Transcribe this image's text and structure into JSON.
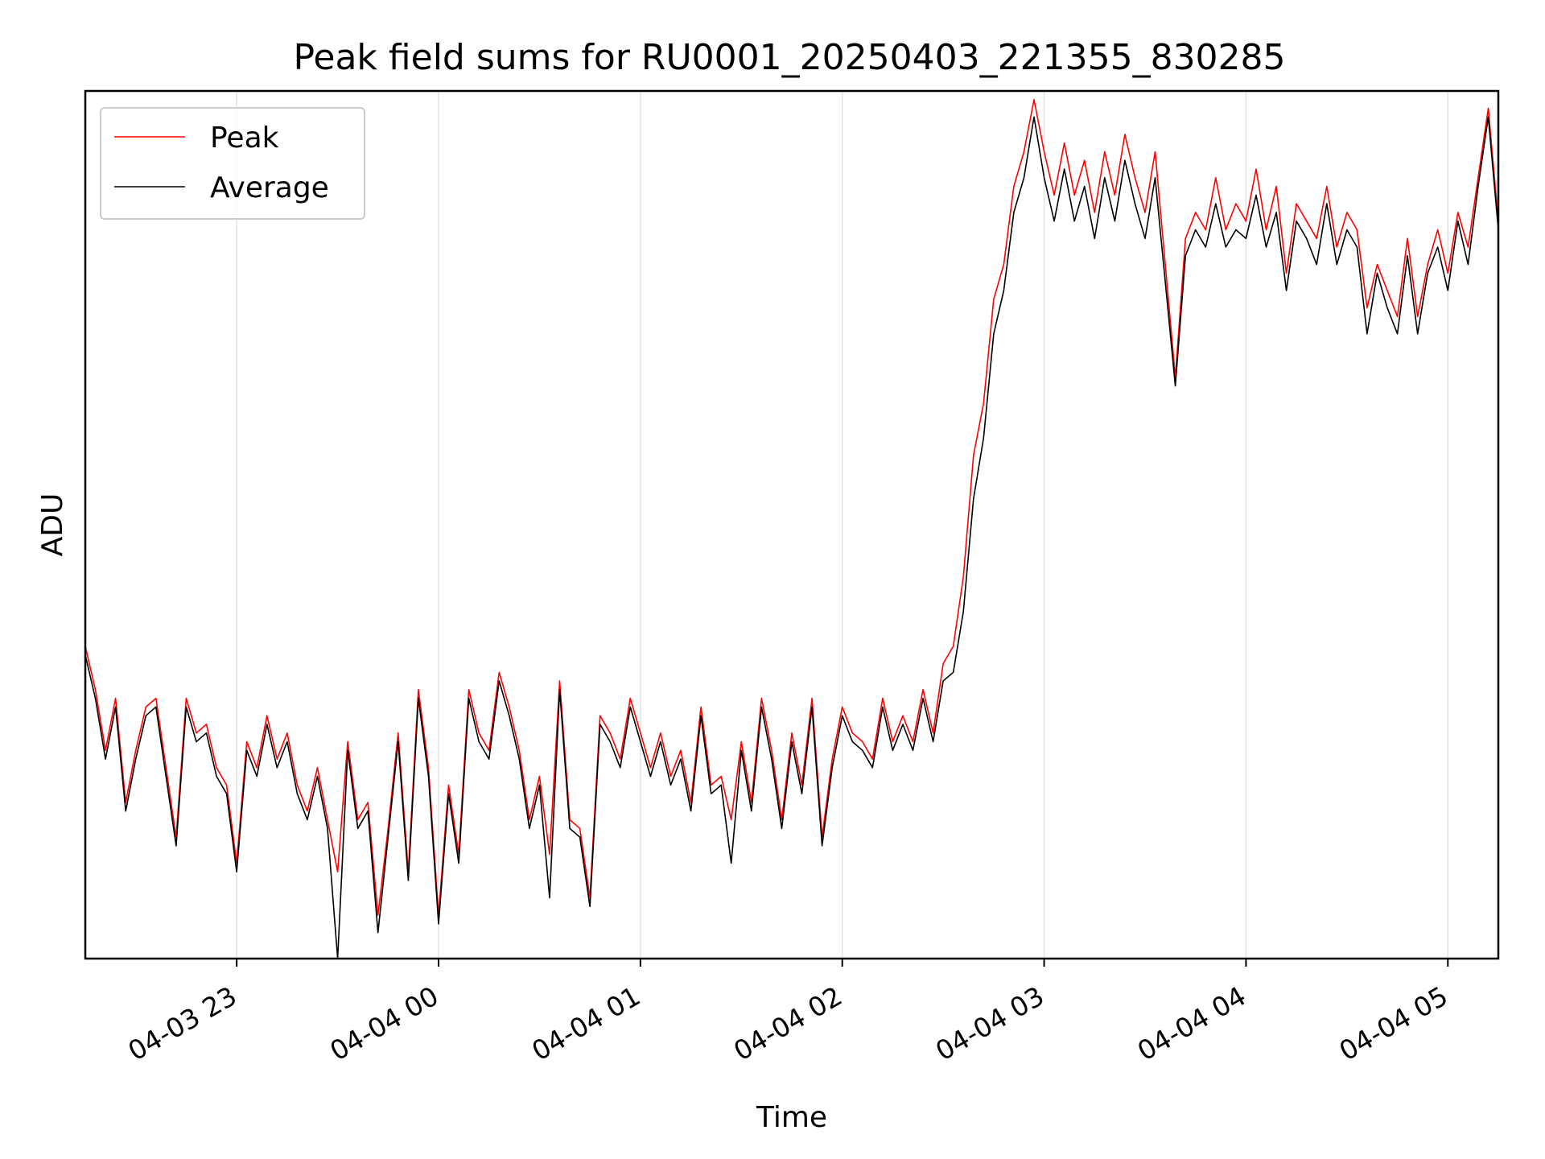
{
  "chart_data": {
    "type": "line",
    "title": "Peak field sums for RU0001_20250403_221355_830285",
    "xlabel": "Time",
    "ylabel": "ADU",
    "x_tick_labels": [
      "04-03 23",
      "04-04 00",
      "04-04 01",
      "04-04 02",
      "04-04 03",
      "04-04 04",
      "04-04 05"
    ],
    "x_tick_hours": [
      23,
      24,
      25,
      26,
      27,
      28,
      29
    ],
    "xlim_hours": [
      22.25,
      29.25
    ],
    "ylim": [
      0,
      1
    ],
    "y_tick_labels": [],
    "grid": "x-only",
    "legend_position": "top-left",
    "series": [
      {
        "name": "Peak",
        "color": "#ff0000",
        "hours": [
          22.25,
          22.3,
          22.35,
          22.4,
          22.45,
          22.5,
          22.55,
          22.6,
          22.65,
          22.7,
          22.75,
          22.8,
          22.85,
          22.9,
          22.95,
          23.0,
          23.05,
          23.1,
          23.15,
          23.2,
          23.25,
          23.3,
          23.35,
          23.4,
          23.45,
          23.5,
          23.55,
          23.6,
          23.65,
          23.7,
          23.75,
          23.8,
          23.85,
          23.9,
          23.95,
          24.0,
          24.05,
          24.1,
          24.15,
          24.2,
          24.25,
          24.3,
          24.35,
          24.4,
          24.45,
          24.5,
          24.55,
          24.6,
          24.65,
          24.7,
          24.75,
          24.8,
          24.85,
          24.9,
          24.95,
          25.0,
          25.05,
          25.1,
          25.15,
          25.2,
          25.25,
          25.3,
          25.35,
          25.4,
          25.45,
          25.5,
          25.55,
          25.6,
          25.65,
          25.7,
          25.75,
          25.8,
          25.85,
          25.9,
          25.95,
          26.0,
          26.05,
          26.1,
          26.15,
          26.2,
          26.25,
          26.3,
          26.35,
          26.4,
          26.45,
          26.5,
          26.55,
          26.6,
          26.65,
          26.7,
          26.75,
          26.8,
          26.85,
          26.9,
          26.95,
          27.0,
          27.05,
          27.1,
          27.15,
          27.2,
          27.25,
          27.3,
          27.35,
          27.4,
          27.45,
          27.5,
          27.55,
          27.6,
          27.65,
          27.7,
          27.75,
          27.8,
          27.85,
          27.9,
          27.95,
          28.0,
          28.05,
          28.1,
          28.15,
          28.2,
          28.25,
          28.3,
          28.35,
          28.4,
          28.45,
          28.5,
          28.55,
          28.6,
          28.65,
          28.7,
          28.75,
          28.8,
          28.85,
          28.9,
          28.95,
          29.0,
          29.05,
          29.1,
          29.15,
          29.2,
          29.25
        ],
        "values": [
          0.36,
          0.31,
          0.24,
          0.3,
          0.18,
          0.24,
          0.29,
          0.3,
          0.22,
          0.14,
          0.3,
          0.26,
          0.27,
          0.22,
          0.2,
          0.11,
          0.25,
          0.22,
          0.28,
          0.23,
          0.26,
          0.2,
          0.17,
          0.22,
          0.16,
          0.1,
          0.25,
          0.16,
          0.18,
          0.05,
          0.15,
          0.26,
          0.1,
          0.31,
          0.22,
          0.05,
          0.2,
          0.12,
          0.31,
          0.26,
          0.24,
          0.33,
          0.29,
          0.24,
          0.16,
          0.21,
          0.12,
          0.32,
          0.16,
          0.15,
          0.07,
          0.28,
          0.26,
          0.23,
          0.3,
          0.26,
          0.22,
          0.26,
          0.21,
          0.24,
          0.18,
          0.29,
          0.2,
          0.21,
          0.16,
          0.25,
          0.18,
          0.3,
          0.24,
          0.16,
          0.26,
          0.2,
          0.3,
          0.14,
          0.23,
          0.29,
          0.26,
          0.25,
          0.23,
          0.3,
          0.25,
          0.28,
          0.25,
          0.31,
          0.26,
          0.34,
          0.36,
          0.44,
          0.58,
          0.64,
          0.76,
          0.8,
          0.89,
          0.93,
          0.99,
          0.93,
          0.88,
          0.94,
          0.88,
          0.92,
          0.86,
          0.93,
          0.88,
          0.95,
          0.9,
          0.86,
          0.93,
          0.8,
          0.67,
          0.83,
          0.86,
          0.84,
          0.9,
          0.84,
          0.87,
          0.85,
          0.91,
          0.84,
          0.89,
          0.79,
          0.87,
          0.85,
          0.83,
          0.89,
          0.82,
          0.86,
          0.84,
          0.75,
          0.8,
          0.77,
          0.74,
          0.83,
          0.74,
          0.8,
          0.84,
          0.79,
          0.86,
          0.82,
          0.9,
          0.98,
          0.85
        ]
      },
      {
        "name": "Average",
        "color": "#000000",
        "hours": [
          22.25,
          22.3,
          22.35,
          22.4,
          22.45,
          22.5,
          22.55,
          22.6,
          22.65,
          22.7,
          22.75,
          22.8,
          22.85,
          22.9,
          22.95,
          23.0,
          23.05,
          23.1,
          23.15,
          23.2,
          23.25,
          23.3,
          23.35,
          23.4,
          23.45,
          23.5,
          23.55,
          23.6,
          23.65,
          23.7,
          23.75,
          23.8,
          23.85,
          23.9,
          23.95,
          24.0,
          24.05,
          24.1,
          24.15,
          24.2,
          24.25,
          24.3,
          24.35,
          24.4,
          24.45,
          24.5,
          24.55,
          24.6,
          24.65,
          24.7,
          24.75,
          24.8,
          24.85,
          24.9,
          24.95,
          25.0,
          25.05,
          25.1,
          25.15,
          25.2,
          25.25,
          25.3,
          25.35,
          25.4,
          25.45,
          25.5,
          25.55,
          25.6,
          25.65,
          25.7,
          25.75,
          25.8,
          25.85,
          25.9,
          25.95,
          26.0,
          26.05,
          26.1,
          26.15,
          26.2,
          26.25,
          26.3,
          26.35,
          26.4,
          26.45,
          26.5,
          26.55,
          26.6,
          26.65,
          26.7,
          26.75,
          26.8,
          26.85,
          26.9,
          26.95,
          27.0,
          27.05,
          27.1,
          27.15,
          27.2,
          27.25,
          27.3,
          27.35,
          27.4,
          27.45,
          27.5,
          27.55,
          27.6,
          27.65,
          27.7,
          27.75,
          27.8,
          27.85,
          27.9,
          27.95,
          28.0,
          28.05,
          28.1,
          28.15,
          28.2,
          28.25,
          28.3,
          28.35,
          28.4,
          28.45,
          28.5,
          28.55,
          28.6,
          28.65,
          28.7,
          28.75,
          28.8,
          28.85,
          28.9,
          28.95,
          29.0,
          29.05,
          29.1,
          29.15,
          29.2,
          29.25
        ],
        "values": [
          0.35,
          0.3,
          0.23,
          0.29,
          0.17,
          0.23,
          0.28,
          0.29,
          0.21,
          0.13,
          0.29,
          0.25,
          0.26,
          0.21,
          0.19,
          0.1,
          0.24,
          0.21,
          0.27,
          0.22,
          0.25,
          0.19,
          0.16,
          0.21,
          0.15,
          0.0,
          0.24,
          0.15,
          0.17,
          0.03,
          0.14,
          0.25,
          0.09,
          0.3,
          0.21,
          0.04,
          0.19,
          0.11,
          0.3,
          0.25,
          0.23,
          0.32,
          0.28,
          0.23,
          0.15,
          0.2,
          0.07,
          0.31,
          0.15,
          0.14,
          0.06,
          0.27,
          0.25,
          0.22,
          0.29,
          0.25,
          0.21,
          0.25,
          0.2,
          0.23,
          0.17,
          0.28,
          0.19,
          0.2,
          0.11,
          0.24,
          0.17,
          0.29,
          0.23,
          0.15,
          0.25,
          0.19,
          0.29,
          0.13,
          0.22,
          0.28,
          0.25,
          0.24,
          0.22,
          0.29,
          0.24,
          0.27,
          0.24,
          0.3,
          0.25,
          0.32,
          0.33,
          0.4,
          0.53,
          0.6,
          0.72,
          0.77,
          0.86,
          0.9,
          0.97,
          0.9,
          0.85,
          0.91,
          0.85,
          0.89,
          0.83,
          0.9,
          0.85,
          0.92,
          0.87,
          0.83,
          0.9,
          0.78,
          0.66,
          0.81,
          0.84,
          0.82,
          0.87,
          0.82,
          0.84,
          0.83,
          0.88,
          0.82,
          0.86,
          0.77,
          0.85,
          0.83,
          0.8,
          0.87,
          0.8,
          0.84,
          0.82,
          0.72,
          0.79,
          0.75,
          0.72,
          0.81,
          0.72,
          0.79,
          0.82,
          0.77,
          0.85,
          0.8,
          0.89,
          0.97,
          0.84
        ]
      }
    ]
  }
}
